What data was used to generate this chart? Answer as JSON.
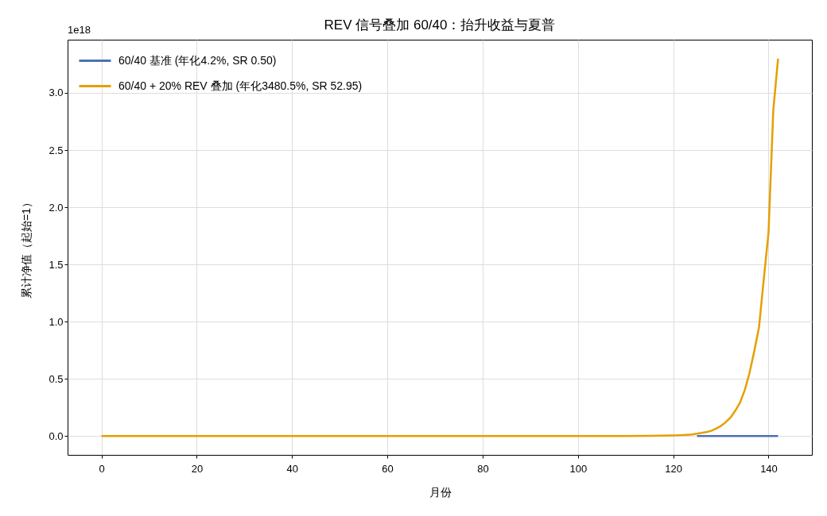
{
  "chart_data": {
    "type": "line",
    "title": "REV 信号叠加 60/40：抬升收益与夏普",
    "xlabel": "月份",
    "ylabel": "累计净值（起始=1）",
    "annotations": [
      "1e18"
    ],
    "series": [
      {
        "name": "60/40 基准 (年化4.2%, SR 0.50)",
        "color": "#4c72b0",
        "x": [
          125,
          130,
          135,
          140,
          142
        ],
        "values": [
          0,
          0,
          0,
          0,
          0
        ]
      },
      {
        "name": "60/40 + 20% REV 叠加 (年化3480.5%, SR 52.95)",
        "color": "#e69f00",
        "x": [
          0,
          20,
          40,
          60,
          80,
          100,
          110,
          115,
          120,
          121,
          122,
          123,
          124,
          125,
          126,
          127,
          128,
          129,
          130,
          131,
          132,
          133,
          134,
          135,
          136,
          137,
          138,
          139,
          140,
          141,
          142
        ],
        "values": [
          0,
          0,
          0,
          0,
          0,
          0,
          0,
          0.002,
          0.005,
          0.006,
          0.008,
          0.011,
          0.014,
          0.02,
          0.027,
          0.035,
          0.046,
          0.065,
          0.088,
          0.12,
          0.16,
          0.22,
          0.29,
          0.4,
          0.55,
          0.74,
          0.95,
          1.37,
          1.78,
          2.85,
          3.3
        ]
      }
    ],
    "xlim": [
      -7.1,
      149.1
    ],
    "ylim": [
      -0.165,
      3.465
    ],
    "xticks": [
      0,
      20,
      40,
      60,
      80,
      100,
      120,
      140
    ],
    "yticks": [
      {
        "value": 0,
        "label": "0.0"
      },
      0.5,
      {
        "value": 1,
        "label": "1.0"
      },
      1.5,
      {
        "value": 2,
        "label": "2.0"
      },
      2.5,
      {
        "value": 3,
        "label": "3.0"
      }
    ],
    "grid": true,
    "legend": "top left",
    "marker": "none",
    "line_style": "solid"
  }
}
